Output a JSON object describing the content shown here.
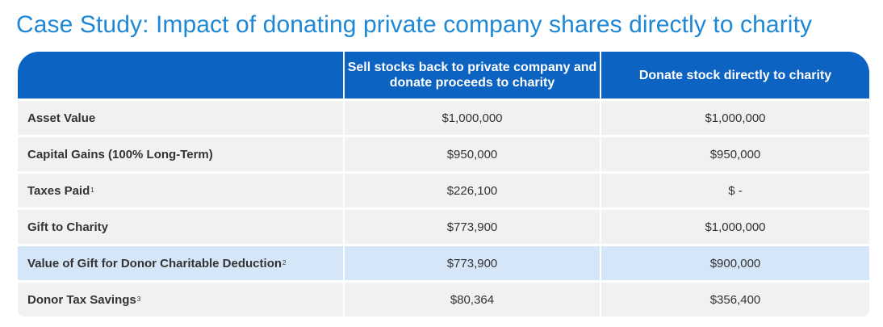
{
  "title": "Case Study: Impact of donating private company shares directly to charity",
  "table": {
    "headers": [
      "",
      "Sell stocks back to private company and donate proceeds to charity",
      "Donate stock directly to charity"
    ],
    "rows": [
      {
        "label": "Asset Value",
        "sup": "",
        "sell": "$1,000,000",
        "donate": "$1,000,000",
        "highlight": false
      },
      {
        "label": "Capital Gains (100% Long-Term)",
        "sup": "",
        "sell": "$950,000",
        "donate": "$950,000",
        "highlight": false
      },
      {
        "label": "Taxes Paid",
        "sup": "1",
        "sell": "$226,100",
        "donate": "$ -",
        "highlight": false
      },
      {
        "label": "Gift to Charity",
        "sup": "",
        "sell": "$773,900",
        "donate": "$1,000,000",
        "highlight": false
      },
      {
        "label": "Value of Gift for Donor Charitable Deduction",
        "sup": "2",
        "sell": "$773,900",
        "donate": "$900,000",
        "highlight": true
      },
      {
        "label": "Donor Tax Savings",
        "sup": "3",
        "sell": "$80,364",
        "donate": "$356,400",
        "highlight": false
      }
    ]
  },
  "colors": {
    "title": "#1e88d6",
    "header_bg": "#0c63c1",
    "row_bg": "#f1f1f1",
    "highlight_bg": "#d4e6f7"
  }
}
